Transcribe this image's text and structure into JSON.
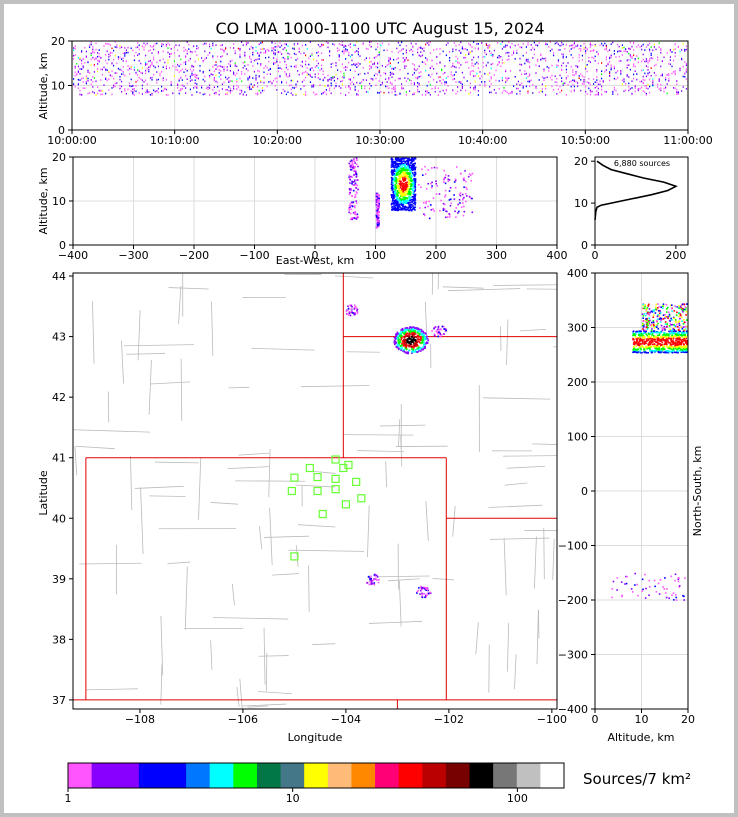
{
  "title": "CO LMA 1000-1100 UTC August 15, 2024",
  "time_height": {
    "ylabel": "Altitude, km",
    "xticks": [
      "10:00:00",
      "10:10:00",
      "10:20:00",
      "10:30:00",
      "10:40:00",
      "10:50:00",
      "11:00:00"
    ],
    "yticks": [
      "0",
      "10",
      "20"
    ]
  },
  "ew_height": {
    "ylabel": "Altitude, km",
    "xlabel": "East-West, km",
    "xticks": [
      "−400",
      "−300",
      "−200",
      "−100",
      "0",
      "100",
      "200",
      "300",
      "400"
    ],
    "yticks": [
      "0",
      "10",
      "20"
    ]
  },
  "histogram": {
    "annotation": "6,880 sources",
    "xticks": [
      "0",
      "200"
    ],
    "yticks": [
      "0",
      "10",
      "20"
    ]
  },
  "plan_view": {
    "xlabel": "Longitude",
    "ylabel": "Latitude",
    "xticks": [
      "−108",
      "−106",
      "−104",
      "−102",
      "−100"
    ],
    "yticks": [
      "37",
      "38",
      "39",
      "40",
      "41",
      "42",
      "43",
      "44"
    ]
  },
  "ns_height": {
    "xlabel": "Altitude, km",
    "ylabel": "North-South, km",
    "xticks": [
      "0",
      "10",
      "20"
    ],
    "yticks": [
      "−400",
      "−300",
      "−200",
      "−100",
      "0",
      "100",
      "200",
      "300",
      "400"
    ]
  },
  "colorbar": {
    "units": "Sources/7 km²",
    "ticks": [
      "1",
      "10",
      "100"
    ],
    "colors": [
      "#ff55ff",
      "#8800ff",
      "#8800ff",
      "#0000ff",
      "#0000ff",
      "#0077ff",
      "#00ffff",
      "#00ff00",
      "#007744",
      "#447788",
      "#ffff00",
      "#ffbb77",
      "#ff8800",
      "#ff0077",
      "#ff0000",
      "#bb0000",
      "#770000",
      "#000000",
      "#777777",
      "#c0c0c0",
      "#ffffff"
    ]
  },
  "chart_data": [
    {
      "type": "scatter",
      "panel": "time-height",
      "title": "CO LMA 1000-1100 UTC August 15, 2024",
      "ylabel": "Altitude, km",
      "xlim": [
        "10:00:00",
        "11:00:00"
      ],
      "ylim": [
        0,
        20
      ],
      "grid": true,
      "series": [
        {
          "x": [
            "10:00",
            "10:05",
            "10:10",
            "10:15",
            "10:20",
            "10:25",
            "10:30",
            "10:35",
            "10:40",
            "10:45",
            "10:50",
            "10:55",
            "11:00"
          ],
          "y_range_km": [
            8,
            20
          ]
        }
      ]
    },
    {
      "type": "heatmap",
      "panel": "east-west-height",
      "xlabel": "East-West, km",
      "ylabel": "Altitude, km",
      "xlim": [
        -400,
        400
      ],
      "ylim": [
        0,
        20
      ],
      "grid": true,
      "clusters": [
        {
          "x_range": [
            125,
            165
          ],
          "y_range": [
            8,
            20
          ],
          "level": "high"
        },
        {
          "x_range": [
            55,
            70
          ],
          "y_range": [
            6,
            20
          ],
          "level": "low"
        },
        {
          "x_range": [
            100,
            105
          ],
          "y_range": [
            4,
            12
          ],
          "level": "low"
        },
        {
          "x_range": [
            170,
            260
          ],
          "y_range": [
            6,
            18
          ],
          "level": "low"
        }
      ]
    },
    {
      "type": "line",
      "panel": "altitude-histogram",
      "annotation": "6,880 sources",
      "xlim": [
        0,
        230
      ],
      "ylim": [
        0,
        21
      ],
      "x": [
        0,
        2,
        5,
        15,
        40,
        90,
        140,
        180,
        200,
        170,
        120,
        80,
        40,
        20,
        5
      ],
      "y": [
        6,
        8,
        9,
        9.5,
        10,
        11,
        12,
        13,
        14,
        15,
        16,
        17,
        18,
        19,
        20
      ]
    },
    {
      "type": "scatter",
      "panel": "plan-view",
      "xlabel": "Longitude",
      "ylabel": "Latitude",
      "xlim": [
        -109.3,
        -99.9
      ],
      "ylim": [
        36.85,
        44.05
      ],
      "stations": [
        {
          "lon": -104.2,
          "lat": 40.97
        },
        {
          "lon": -103.95,
          "lat": 40.88
        },
        {
          "lon": -104.05,
          "lat": 40.83
        },
        {
          "lon": -104.7,
          "lat": 40.83
        },
        {
          "lon": -105.0,
          "lat": 40.67
        },
        {
          "lon": -104.55,
          "lat": 40.68
        },
        {
          "lon": -104.2,
          "lat": 40.65
        },
        {
          "lon": -103.8,
          "lat": 40.6
        },
        {
          "lon": -104.2,
          "lat": 40.48
        },
        {
          "lon": -104.55,
          "lat": 40.45
        },
        {
          "lon": -105.05,
          "lat": 40.45
        },
        {
          "lon": -103.7,
          "lat": 40.33
        },
        {
          "lon": -104.0,
          "lat": 40.23
        },
        {
          "lon": -104.45,
          "lat": 40.07
        },
        {
          "lon": -105.0,
          "lat": 39.37
        }
      ],
      "storms": [
        {
          "lon": -102.75,
          "lat": 42.95,
          "level": "high"
        },
        {
          "lon": -103.9,
          "lat": 43.45,
          "level": "low"
        },
        {
          "lon": -102.2,
          "lat": 43.1,
          "level": "low"
        },
        {
          "lon": -103.5,
          "lat": 39.0,
          "level": "low"
        },
        {
          "lon": -102.5,
          "lat": 38.8,
          "level": "low"
        }
      ]
    },
    {
      "type": "heatmap",
      "panel": "north-south-height",
      "xlabel": "Altitude, km",
      "ylabel": "North-South, km",
      "xlim": [
        0,
        20
      ],
      "ylim": [
        -400,
        400
      ],
      "grid": true,
      "clusters": [
        {
          "x_range": [
            8,
            20
          ],
          "y_range": [
            255,
            295
          ],
          "level": "high"
        },
        {
          "x_range": [
            10,
            20
          ],
          "y_range": [
            295,
            345
          ],
          "level": "medium"
        },
        {
          "x_range": [
            3,
            20
          ],
          "y_range": [
            -200,
            -150
          ],
          "level": "low"
        }
      ]
    }
  ]
}
